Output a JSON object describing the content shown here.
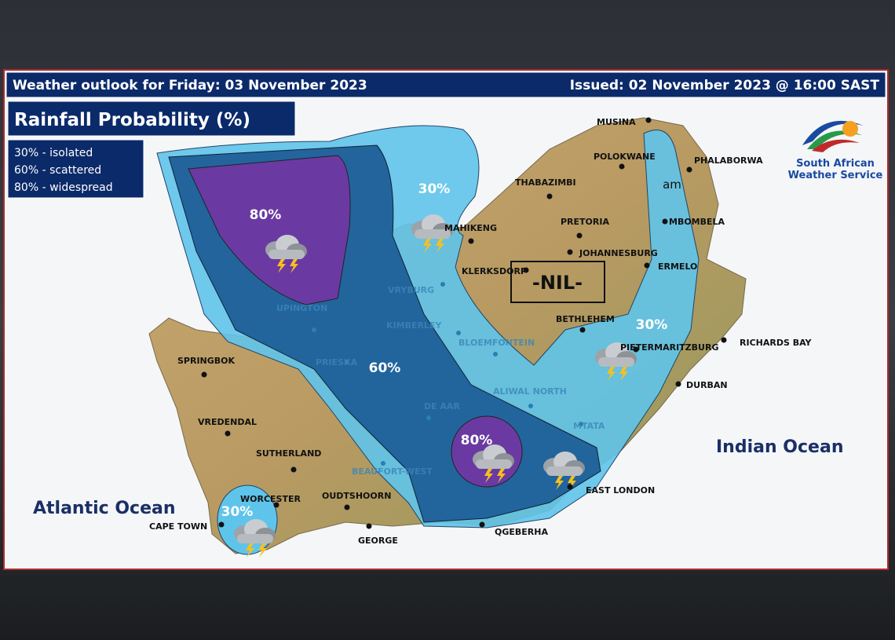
{
  "header": {
    "title": "Weather outlook for Friday: 03 November 2023",
    "issued": "Issued: 02 November 2023 @ 16:00 SAST"
  },
  "panel": {
    "title": "Rainfall Probability (%)",
    "legend": [
      "30% - isolated",
      "60% - scattered",
      "80% - widespread"
    ]
  },
  "logo": {
    "lines": [
      "South African",
      "Weather Service"
    ]
  },
  "oceans": [
    "Atlantic Ocean",
    "Indian Ocean"
  ],
  "zones": [
    "80%",
    "30%",
    "60%",
    "80%",
    "30%",
    "30%"
  ],
  "nil_label": "-NIL-",
  "overlay_text": "am",
  "cities": [
    "MUSINA",
    "POLOKWANE",
    "PHALABORWA",
    "THABAZIMBI",
    "PRETORIA",
    "JOHANNESBURG",
    "MBOMBELA",
    "ERMELO",
    "KLERKSDORP",
    "MAHIKENG",
    "BETHLEHEM",
    "PIETERMARITZBURG",
    "RICHARDS BAY",
    "DURBAN",
    "SPRINGBOK",
    "VREDENDAL",
    "SUTHERLAND",
    "WORCESTER",
    "OUDTSHOORN",
    "CAPE TOWN",
    "GEORGE",
    "QGEBERHA",
    "EAST LONDON"
  ],
  "faded_cities": [
    "VRYBURG",
    "UPINGTON",
    "KIMBERLEY",
    "BLOEMFONTEIN",
    "PRIESKA",
    "ALIWAL NORTH",
    "DE AAR",
    "MTATA",
    "BEAUFORT-WEST"
  ]
}
